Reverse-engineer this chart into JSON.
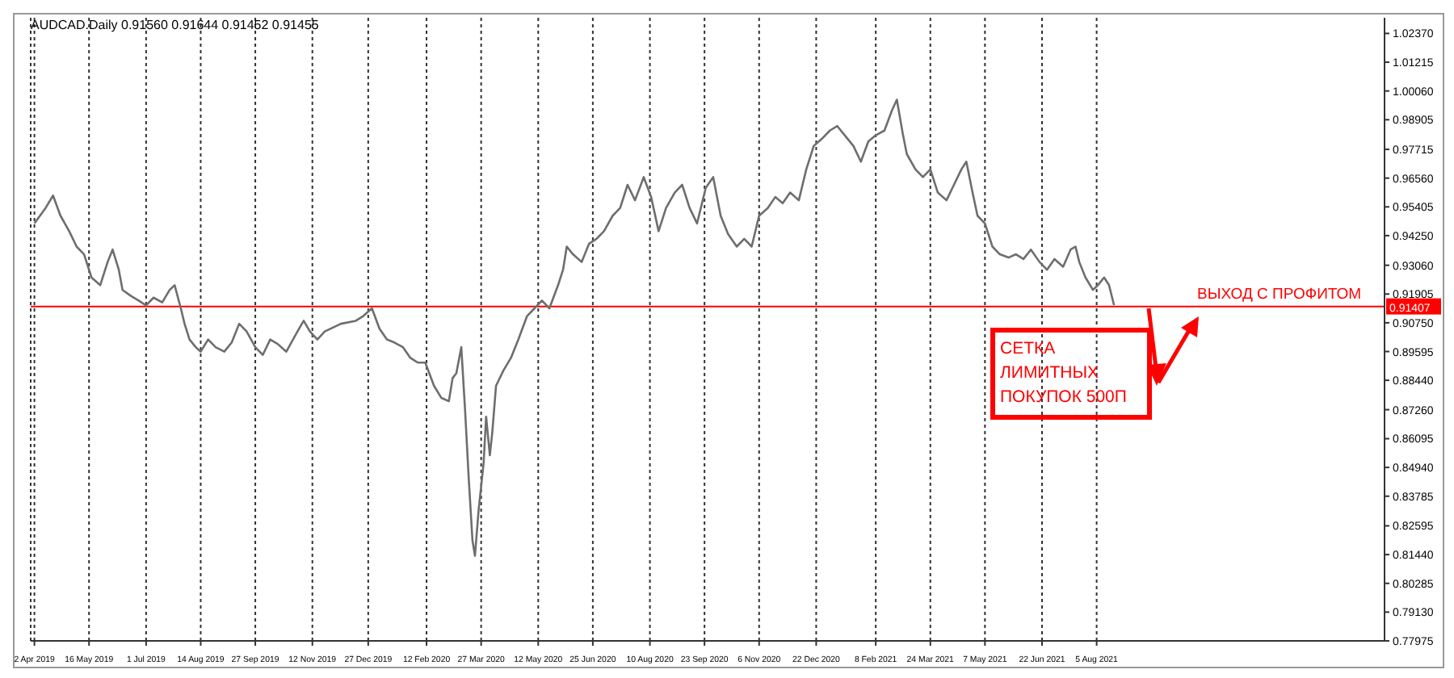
{
  "chart_data": {
    "type": "line",
    "title": "AUDCAD.Daily 0.91560 0.91644 0.91452 0.91455",
    "x": [
      "2019-04-02",
      "2019-04-11",
      "2019-04-17",
      "2019-04-23",
      "2019-04-30",
      "2019-05-06",
      "2019-05-12",
      "2019-05-18",
      "2019-05-25",
      "2019-05-31",
      "2019-06-04",
      "2019-06-09",
      "2019-06-12",
      "2019-06-19",
      "2019-06-25",
      "2019-07-01",
      "2019-07-07",
      "2019-07-14",
      "2019-07-20",
      "2019-07-24",
      "2019-07-29",
      "2019-08-01",
      "2019-08-05",
      "2019-08-10",
      "2019-08-14",
      "2019-08-20",
      "2019-08-26",
      "2019-09-02",
      "2019-09-08",
      "2019-09-14",
      "2019-09-20",
      "2019-09-27",
      "2019-10-03",
      "2019-10-09",
      "2019-10-15",
      "2019-10-22",
      "2019-10-31",
      "2019-11-05",
      "2019-11-10",
      "2019-11-16",
      "2019-11-22",
      "2019-12-05",
      "2019-12-17",
      "2019-12-23",
      "2019-12-30",
      "2020-01-05",
      "2020-01-11",
      "2020-01-17",
      "2020-01-24",
      "2020-01-30",
      "2020-02-05",
      "2020-02-11",
      "2020-02-18",
      "2020-02-24",
      "2020-03-01",
      "2020-03-04",
      "2020-03-07",
      "2020-03-11",
      "2020-03-14",
      "2020-03-17",
      "2020-03-20",
      "2020-03-22",
      "2020-03-25",
      "2020-03-29",
      "2020-03-31",
      "2020-04-03",
      "2020-04-05",
      "2020-04-08",
      "2020-04-14",
      "2020-04-20",
      "2020-04-26",
      "2020-05-03",
      "2020-05-09",
      "2020-05-15",
      "2020-05-21",
      "2020-05-28",
      "2020-06-01",
      "2020-06-04",
      "2020-06-09",
      "2020-06-16",
      "2020-06-22",
      "2020-06-28",
      "2020-07-04",
      "2020-07-11",
      "2020-07-17",
      "2020-07-23",
      "2020-07-29",
      "2020-08-05",
      "2020-08-11",
      "2020-08-17",
      "2020-08-23",
      "2020-08-30",
      "2020-09-05",
      "2020-09-11",
      "2020-09-17",
      "2020-09-24",
      "2020-09-30",
      "2020-10-06",
      "2020-10-12",
      "2020-10-19",
      "2020-10-25",
      "2020-10-31",
      "2020-11-06",
      "2020-11-13",
      "2020-11-19",
      "2020-11-25",
      "2020-12-01",
      "2020-12-08",
      "2020-12-14",
      "2020-12-20",
      "2020-12-27",
      "2021-01-02",
      "2021-01-08",
      "2021-01-14",
      "2021-01-21",
      "2021-01-27",
      "2021-02-02",
      "2021-02-08",
      "2021-02-15",
      "2021-02-21",
      "2021-02-25",
      "2021-03-02",
      "2021-03-05",
      "2021-03-12",
      "2021-03-18",
      "2021-03-24",
      "2021-03-30",
      "2021-04-06",
      "2021-04-12",
      "2021-04-18",
      "2021-04-22",
      "2021-04-27",
      "2021-05-01",
      "2021-05-07",
      "2021-05-13",
      "2021-05-19",
      "2021-05-26",
      "2021-06-01",
      "2021-06-07",
      "2021-06-13",
      "2021-06-20",
      "2021-06-26",
      "2021-07-02",
      "2021-07-09",
      "2021-07-15",
      "2021-07-19",
      "2021-07-22",
      "2021-07-27",
      "2021-08-02",
      "2021-08-06",
      "2021-08-11",
      "2021-08-15",
      "2021-08-19"
    ],
    "series": [
      {
        "color": "#6e6e6e",
        "values": [
          0.9474,
          0.9536,
          0.9586,
          0.9505,
          0.9443,
          0.9381,
          0.935,
          0.9257,
          0.9226,
          0.9319,
          0.9369,
          0.9288,
          0.9207,
          0.9182,
          0.9164,
          0.9145,
          0.9176,
          0.9157,
          0.9207,
          0.9226,
          0.9133,
          0.9071,
          0.9008,
          0.8977,
          0.8959,
          0.9008,
          0.8977,
          0.8959,
          0.8996,
          0.9071,
          0.904,
          0.8977,
          0.8946,
          0.9008,
          0.899,
          0.8959,
          0.904,
          0.9083,
          0.904,
          0.9008,
          0.904,
          0.9071,
          0.9083,
          0.9102,
          0.9133,
          0.9052,
          0.9008,
          0.8996,
          0.8977,
          0.8934,
          0.8915,
          0.8915,
          0.8822,
          0.8773,
          0.876,
          0.8853,
          0.8872,
          0.8977,
          0.8729,
          0.8449,
          0.8201,
          0.8139,
          0.8325,
          0.8512,
          0.8698,
          0.8543,
          0.8636,
          0.8822,
          0.8884,
          0.8934,
          0.9008,
          0.9102,
          0.9133,
          0.9164,
          0.9133,
          0.9226,
          0.9288,
          0.9381,
          0.935,
          0.9319,
          0.9393,
          0.9412,
          0.9443,
          0.9505,
          0.9536,
          0.9629,
          0.9567,
          0.966,
          0.958,
          0.9443,
          0.9536,
          0.9598,
          0.9629,
          0.9536,
          0.9474,
          0.9617,
          0.966,
          0.9505,
          0.9431,
          0.9381,
          0.9412,
          0.9381,
          0.9505,
          0.9536,
          0.958,
          0.9555,
          0.9598,
          0.9567,
          0.9691,
          0.9785,
          0.9816,
          0.9847,
          0.9865,
          0.9828,
          0.9785,
          0.9722,
          0.9803,
          0.9828,
          0.9847,
          0.9927,
          0.9971,
          0.9828,
          0.9753,
          0.9691,
          0.966,
          0.9691,
          0.9598,
          0.9567,
          0.9629,
          0.9691,
          0.9722,
          0.9598,
          0.9505,
          0.9474,
          0.9381,
          0.935,
          0.9337,
          0.935,
          0.9331,
          0.9369,
          0.9319,
          0.9288,
          0.9331,
          0.93,
          0.9369,
          0.9381,
          0.9319,
          0.9257,
          0.9207,
          0.9226,
          0.9257,
          0.9226,
          0.9146
        ]
      }
    ],
    "xlim": [
      "2019-03-30",
      "2022-03-25"
    ],
    "xticks": [
      {
        "value": "2019-04-02",
        "label": "2 Apr 2019"
      },
      {
        "value": "2019-05-16",
        "label": "16 May 2019"
      },
      {
        "value": "2019-07-01",
        "label": "1 Jul 2019"
      },
      {
        "value": "2019-08-14",
        "label": "14 Aug 2019"
      },
      {
        "value": "2019-09-27",
        "label": "27 Sep 2019"
      },
      {
        "value": "2019-11-12",
        "label": "12 Nov 2019"
      },
      {
        "value": "2019-12-27",
        "label": "27 Dec 2019"
      },
      {
        "value": "2020-02-12",
        "label": "12 Feb 2020"
      },
      {
        "value": "2020-03-27",
        "label": "27 Mar 2020"
      },
      {
        "value": "2020-05-12",
        "label": "12 May 2020"
      },
      {
        "value": "2020-06-25",
        "label": "25 Jun 2020"
      },
      {
        "value": "2020-08-10",
        "label": "10 Aug 2020"
      },
      {
        "value": "2020-09-23",
        "label": "23 Sep 2020"
      },
      {
        "value": "2020-11-06",
        "label": "6 Nov 2020"
      },
      {
        "value": "2020-12-22",
        "label": "22 Dec 2020"
      },
      {
        "value": "2021-02-08",
        "label": "8 Feb 2021"
      },
      {
        "value": "2021-03-24",
        "label": "24 Mar 2021"
      },
      {
        "value": "2021-05-07",
        "label": "7 May 2021"
      },
      {
        "value": "2021-06-22",
        "label": "22 Jun 2021"
      },
      {
        "value": "2021-08-05",
        "label": "5 Aug 2021"
      }
    ],
    "ylim": [
      0.77975,
      1.03
    ],
    "yticks": [
      {
        "value": 0.77975,
        "label": "0.77975"
      },
      {
        "value": 0.7913,
        "label": "0.79130"
      },
      {
        "value": 0.80285,
        "label": "0.80285"
      },
      {
        "value": 0.8144,
        "label": "0.81440"
      },
      {
        "value": 0.82595,
        "label": "0.82595"
      },
      {
        "value": 0.83785,
        "label": "0.83785"
      },
      {
        "value": 0.8494,
        "label": "0.84940"
      },
      {
        "value": 0.86095,
        "label": "0.86095"
      },
      {
        "value": 0.8726,
        "label": "0.87260"
      },
      {
        "value": 0.8844,
        "label": "0.88440"
      },
      {
        "value": 0.89595,
        "label": "0.89595"
      },
      {
        "value": 0.9075,
        "label": "0.90750"
      },
      {
        "value": 0.91905,
        "label": "0.91905"
      },
      {
        "value": 0.9306,
        "label": "0.93060"
      },
      {
        "value": 0.9425,
        "label": "0.94250"
      },
      {
        "value": 0.95405,
        "label": "0.95405"
      },
      {
        "value": 0.9656,
        "label": "0.96560"
      },
      {
        "value": 0.97715,
        "label": "0.97715"
      },
      {
        "value": 0.98905,
        "label": "0.98905"
      },
      {
        "value": 1.0006,
        "label": "1.00060"
      },
      {
        "value": 1.01215,
        "label": "1.01215"
      },
      {
        "value": 1.0237,
        "label": "1.02370"
      }
    ],
    "ref_lines": [
      {
        "axis": "y",
        "value": 0.91407,
        "label": "0.91407",
        "color": "#ff0000"
      }
    ],
    "annotations": [
      "СЕТКА ЛИМИТНЫХ ПОКУПОК 500П",
      "ВЫХОД С ПРОФИТОМ"
    ],
    "grid": "x",
    "legend": false,
    "marker": "none",
    "line_style": "solid"
  }
}
